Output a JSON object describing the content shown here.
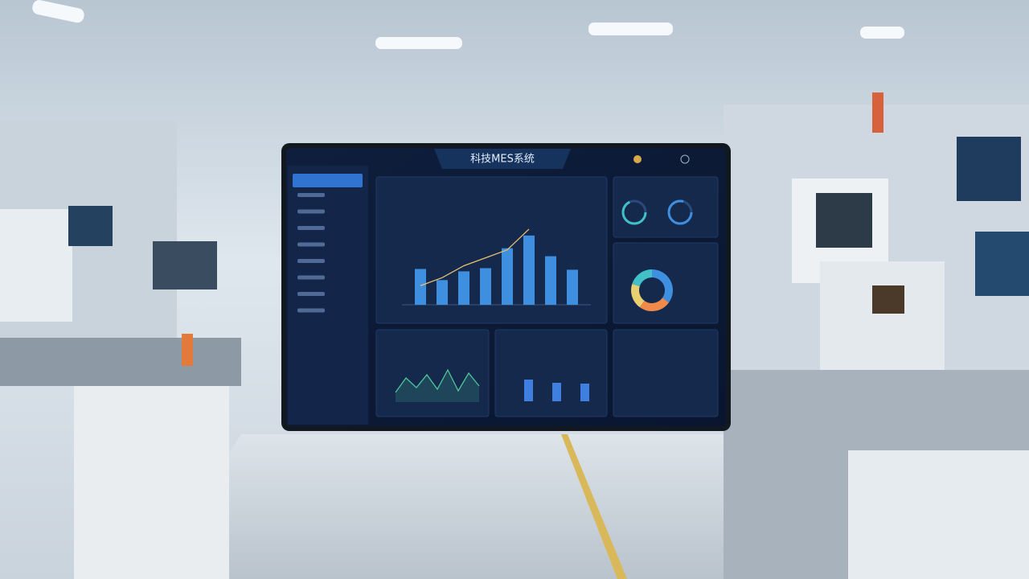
{
  "screen": {
    "title": "科技MES系统",
    "bar_chart": {
      "values": [
        45,
        31,
        42,
        46,
        71,
        87,
        61,
        44
      ],
      "line": [
        24,
        34,
        49,
        59,
        69,
        95
      ],
      "ylim": [
        0,
        100
      ],
      "color": "#3f8fe0",
      "line_color": "#e8c070"
    },
    "wave_chart": {
      "values": [
        12,
        30,
        18,
        34,
        16,
        40,
        14,
        36,
        20
      ],
      "ylim": [
        0,
        50
      ],
      "color": "#4cc79a"
    },
    "donut": {
      "values": [
        35,
        25,
        20,
        20
      ],
      "colors": [
        "#3f8fe0",
        "#f08a4b",
        "#e8d070",
        "#41c0c8"
      ]
    },
    "small_bars": {
      "values": [
        27,
        23,
        22
      ],
      "ylim": [
        0,
        50
      ],
      "color": "#3f7fe0"
    }
  }
}
